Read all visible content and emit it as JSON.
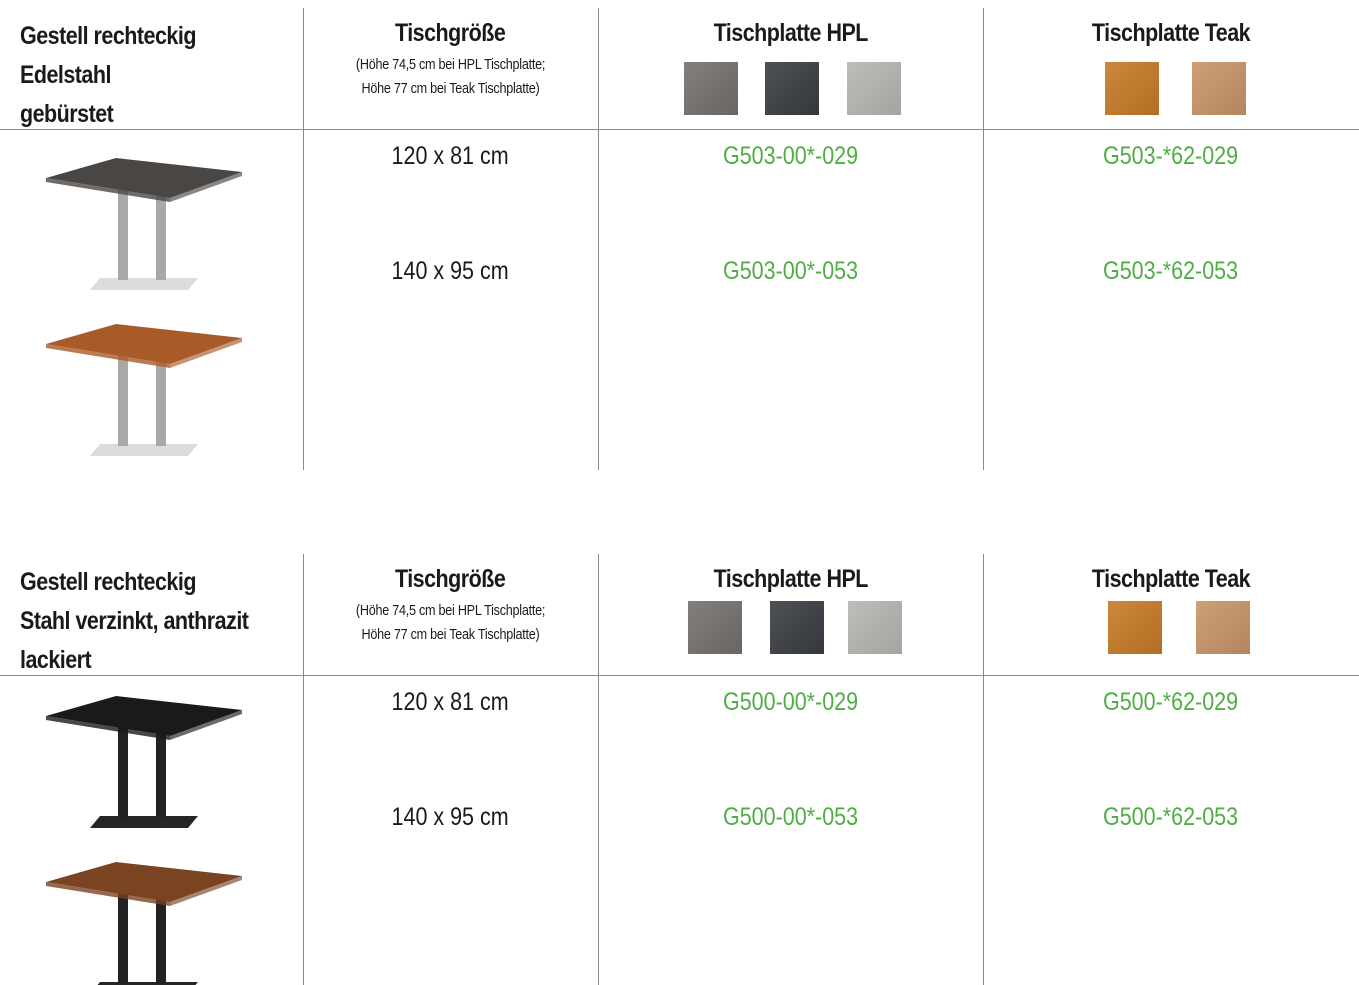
{
  "sections": [
    {
      "frame_title_lines": [
        "Gestell rechteckig",
        "Edelstahl",
        "gebürstet"
      ],
      "size_header": "Tischgröße",
      "size_note_lines": [
        "(Höhe 74,5 cm bei HPL Tischplatte;",
        "Höhe 77 cm bei Teak Tischplatte)"
      ],
      "hpl_header": "Tischplatte HPL",
      "teak_header": "Tischplatte Teak",
      "rows": [
        {
          "size": "120 x 81 cm",
          "hpl_code": "G503-00*-029",
          "teak_code": "G503-*62-029"
        },
        {
          "size": "140 x 95 cm",
          "hpl_code": "G503-00*-053",
          "teak_code": "G503-*62-053"
        }
      ],
      "images": [
        {
          "icon": "stainless-table-hpl-top-image",
          "top_color": "#4a4644",
          "leg_color": "#a8a8a8",
          "base_color": "#dcdcdc"
        },
        {
          "icon": "stainless-table-teak-top-image",
          "top_color": "#a85a28",
          "leg_color": "#a8a8a8",
          "base_color": "#dcdcdc"
        }
      ]
    },
    {
      "frame_title_lines": [
        "Gestell rechteckig",
        "Stahl verzinkt, anthrazit",
        "lackiert"
      ],
      "size_header": "Tischgröße",
      "size_note_lines": [
        "(Höhe 74,5 cm bei HPL Tischplatte;",
        "Höhe 77 cm bei Teak Tischplatte)"
      ],
      "hpl_header": "Tischplatte HPL",
      "teak_header": "Tischplatte Teak",
      "rows": [
        {
          "size": "120 x 81 cm",
          "hpl_code": "G500-00*-029",
          "teak_code": "G500-*62-029"
        },
        {
          "size": "140 x 95 cm",
          "hpl_code": "G500-00*-053",
          "teak_code": "G500-*62-053"
        }
      ],
      "images": [
        {
          "icon": "anthracite-table-hpl-top-image",
          "top_color": "#1c1a19",
          "leg_color": "#222222",
          "base_color": "#262626"
        },
        {
          "icon": "anthracite-table-teak-top-image",
          "top_color": "#7a4422",
          "leg_color": "#222222",
          "base_color": "#262626"
        }
      ]
    }
  ],
  "swatches": {
    "hpl": [
      {
        "name": "hpl-concrete-grey-swatch",
        "color": "#74716d"
      },
      {
        "name": "hpl-dark-anthracite-swatch",
        "color": "#3a3d42"
      },
      {
        "name": "hpl-light-grey-swatch",
        "color": "#b7b6b1"
      }
    ],
    "teak": [
      {
        "name": "teak-oiled-swatch",
        "color": "#c87a26"
      },
      {
        "name": "teak-natural-swatch",
        "color": "#c99567"
      }
    ]
  },
  "colors": {
    "code_green": "#4fae43",
    "rule_grey": "#8a8a8a"
  }
}
